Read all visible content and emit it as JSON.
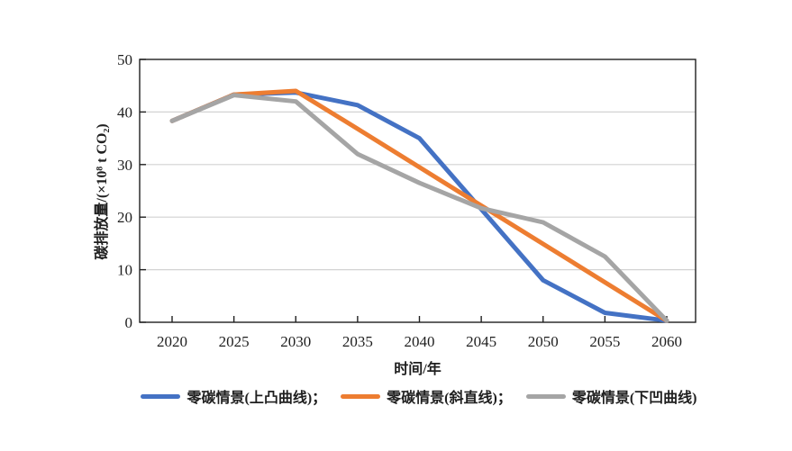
{
  "chart_data": {
    "type": "line",
    "title": "",
    "xlabel": "时间/年",
    "ylabel": "碳排放量/(×10⁸ t CO₂)",
    "x": [
      2020,
      2025,
      2030,
      2035,
      2040,
      2045,
      2050,
      2055,
      2060
    ],
    "x_tick_labels": [
      "2020",
      "2025",
      "2030",
      "2035",
      "2040",
      "2045",
      "2050",
      "2055",
      "2060"
    ],
    "y_ticks": [
      0,
      10,
      20,
      30,
      40,
      50
    ],
    "y_tick_labels": [
      "0",
      "10",
      "20",
      "30",
      "40",
      "50"
    ],
    "ylim": [
      0,
      50
    ],
    "grid": "horizontal-only",
    "legend_position": "bottom",
    "series": [
      {
        "name": "零碳情景(上凸曲线)",
        "color": "#4472C4",
        "values": [
          38.3,
          43.3,
          43.7,
          41.3,
          35.0,
          21.5,
          8.0,
          1.8,
          0.3
        ]
      },
      {
        "name": "零碳情景(斜直线)",
        "color": "#ED7D31",
        "values": [
          38.3,
          43.3,
          44.0,
          36.8,
          29.5,
          22.2,
          14.9,
          7.6,
          0.3
        ]
      },
      {
        "name": "零碳情景(下凹曲线)",
        "color": "#A5A5A5",
        "values": [
          38.3,
          43.2,
          42.0,
          32.0,
          26.5,
          21.7,
          19.0,
          12.5,
          0.3
        ]
      }
    ],
    "legend_labels": [
      "零碳情景(上凸曲线)；",
      "零碳情景(斜直线)；",
      "零碳情景(下凹曲线)"
    ],
    "colors": {
      "grid": "#d2d2d2",
      "axis": "#1f1f1f",
      "tick_label": "#1f1f1f",
      "background": "#ffffff"
    }
  }
}
